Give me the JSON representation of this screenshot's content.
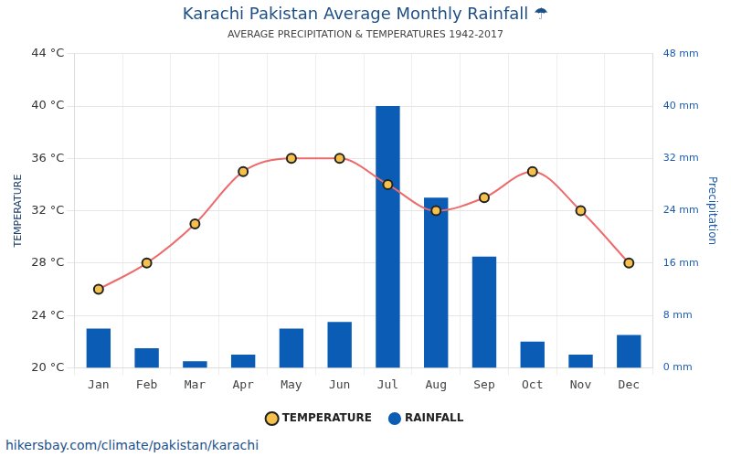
{
  "chart_data": {
    "type": "bar",
    "title": "Karachi Pakistan Average Monthly Rainfall ☂",
    "subtitle": "AVERAGE PRECIPITATION & TEMPERATURES 1942-2017",
    "source": "hikersbay.com/climate/pakistan/karachi",
    "y_label": "TEMPERATURE",
    "y2_label": "Precipitation",
    "categories": [
      "Jan",
      "Feb",
      "Mar",
      "Apr",
      "May",
      "Jun",
      "Jul",
      "Aug",
      "Sep",
      "Oct",
      "Nov",
      "Dec"
    ],
    "series": [
      {
        "name": "TEMPERATURE",
        "type": "line",
        "color": "#ec6b6b",
        "marker": "circle",
        "axis": "y",
        "values": [
          26,
          28,
          31,
          35,
          36,
          36,
          34,
          32,
          33,
          35,
          32,
          28
        ]
      },
      {
        "name": "RAINFALL",
        "type": "bar",
        "color": "#0b5cb5",
        "axis": "y2",
        "values": [
          6,
          3,
          1,
          2,
          6,
          7,
          40,
          26,
          17,
          4,
          2,
          5
        ]
      }
    ],
    "ylim": [
      20,
      44
    ],
    "yticks": [
      {
        "value": 20,
        "label": "20 °C"
      },
      {
        "value": 24,
        "label": "24 °C"
      },
      {
        "value": 28,
        "label": "28 °C"
      },
      {
        "value": 32,
        "label": "32 °C"
      },
      {
        "value": 36,
        "label": "36 °C"
      },
      {
        "value": 40,
        "label": "40 °C"
      },
      {
        "value": 44,
        "label": "44 °C"
      }
    ],
    "y2lim": [
      0,
      48
    ],
    "y2ticks": [
      {
        "value": 0,
        "label": "0 mm"
      },
      {
        "value": 8,
        "label": "8 mm"
      },
      {
        "value": 16,
        "label": "16 mm"
      },
      {
        "value": 24,
        "label": "24 mm"
      },
      {
        "value": 32,
        "label": "32 mm"
      },
      {
        "value": 40,
        "label": "40 mm"
      },
      {
        "value": 48,
        "label": "48 mm"
      }
    ],
    "grid": true,
    "legend": "bottom"
  }
}
